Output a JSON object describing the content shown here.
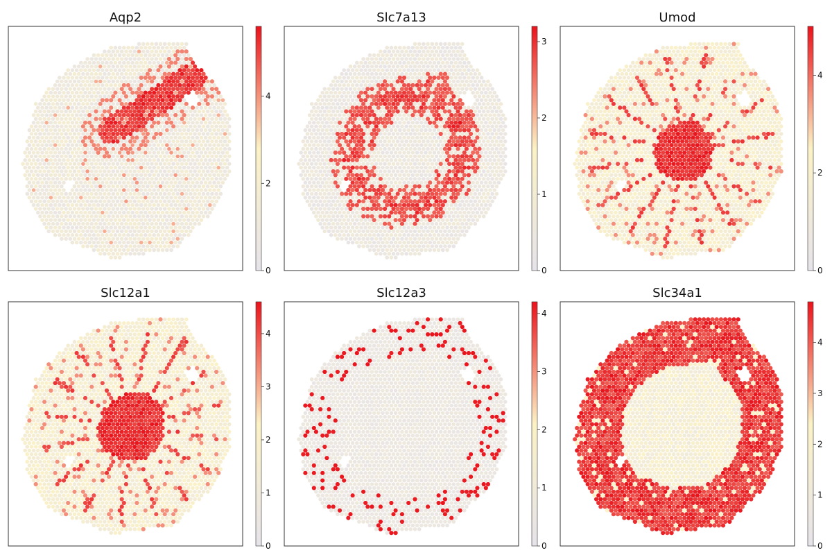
{
  "figure": {
    "colormap": {
      "low": "#e6e3ea",
      "mid": "#fcf2c6",
      "high": "#e8141c"
    }
  },
  "chart_data": [
    {
      "type": "scatter",
      "title": "Aqp2",
      "pattern": "medulla-stripe",
      "colorbar": {
        "vmin": 0,
        "vmax": 5.6,
        "ticks": [
          0,
          2,
          4
        ]
      },
      "xlabel": "",
      "ylabel": "",
      "grid": false
    },
    {
      "type": "scatter",
      "title": "Slc7a13",
      "pattern": "ring-inner",
      "colorbar": {
        "vmin": 0,
        "vmax": 3.2,
        "ticks": [
          0,
          1,
          2,
          3
        ]
      },
      "xlabel": "",
      "ylabel": "",
      "grid": false
    },
    {
      "type": "scatter",
      "title": "Umod",
      "pattern": "center-radial",
      "colorbar": {
        "vmin": 0,
        "vmax": 5.0,
        "ticks": [
          0,
          2,
          4
        ]
      },
      "xlabel": "",
      "ylabel": "",
      "grid": false
    },
    {
      "type": "scatter",
      "title": "Slc12a1",
      "pattern": "center-radial-strong",
      "colorbar": {
        "vmin": 0,
        "vmax": 4.6,
        "ticks": [
          0,
          1,
          2,
          3,
          4
        ]
      },
      "xlabel": "",
      "ylabel": "",
      "grid": false
    },
    {
      "type": "scatter",
      "title": "Slc12a3",
      "pattern": "cortex-sparse",
      "colorbar": {
        "vmin": 0,
        "vmax": 4.2,
        "ticks": [
          0,
          1,
          2,
          3,
          4
        ]
      },
      "xlabel": "",
      "ylabel": "",
      "grid": false
    },
    {
      "type": "scatter",
      "title": "Slc34a1",
      "pattern": "cortex-ring",
      "colorbar": {
        "vmin": 0,
        "vmax": 4.8,
        "ticks": [
          0,
          1,
          2,
          3,
          4
        ]
      },
      "xlabel": "",
      "ylabel": "",
      "grid": false
    }
  ]
}
